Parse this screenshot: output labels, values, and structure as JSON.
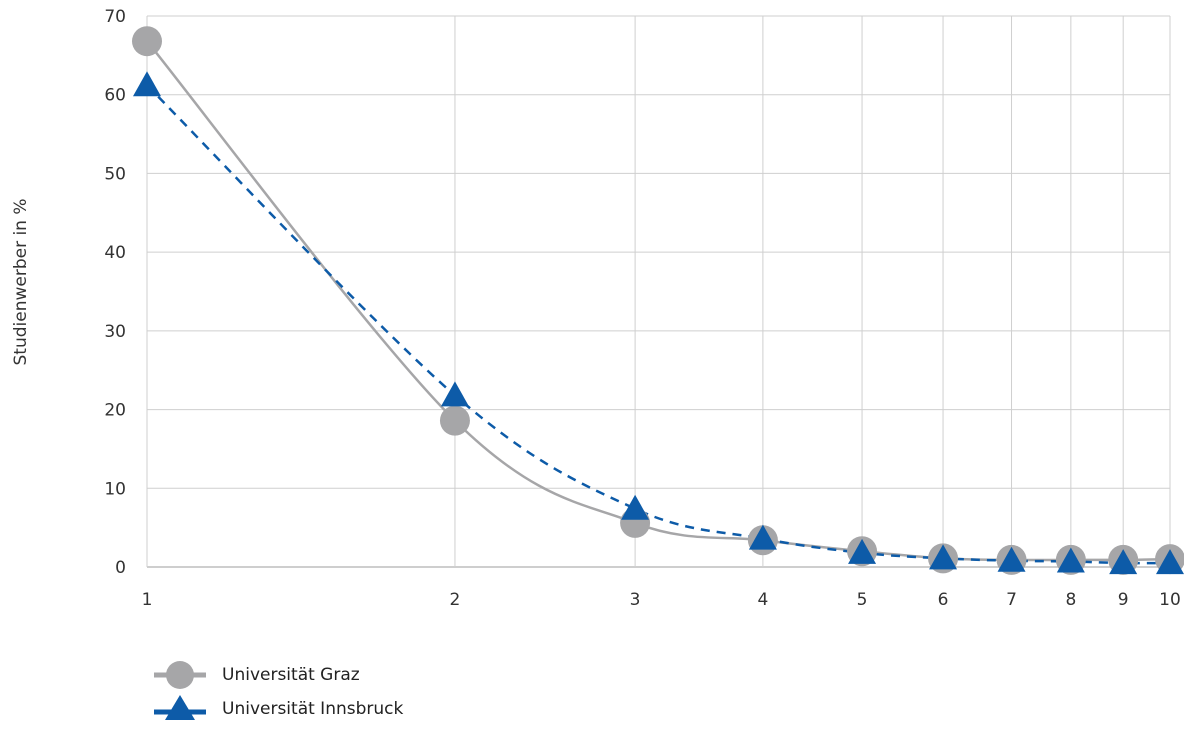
{
  "chart_data": {
    "type": "line",
    "title": "",
    "xlabel": "",
    "ylabel": "Studienwerber in %",
    "x_scale": "log",
    "x": [
      1,
      2,
      3,
      4,
      5,
      6,
      7,
      8,
      9,
      10
    ],
    "x_tick_labels": [
      "1",
      "2",
      "3",
      "4",
      "5",
      "6",
      "7",
      "8",
      "9",
      "10"
    ],
    "y_ticks": [
      0,
      10,
      20,
      30,
      40,
      50,
      60,
      70
    ],
    "ylim": [
      0,
      70
    ],
    "grid": true,
    "legend_position": "bottom-left",
    "series": [
      {
        "name": "Universität Graz",
        "values": [
          66.8,
          18.6,
          5.6,
          3.4,
          2.0,
          1.1,
          0.9,
          0.9,
          0.9,
          1.0
        ],
        "color": "#a6a6a8",
        "marker": "circle",
        "line": "solid"
      },
      {
        "name": "Universität Innsbruck",
        "values": [
          61.2,
          21.8,
          7.4,
          3.6,
          1.8,
          1.1,
          0.8,
          0.7,
          0.5,
          0.5
        ],
        "color": "#0d5ba8",
        "marker": "triangle",
        "line": "dashed"
      }
    ]
  }
}
